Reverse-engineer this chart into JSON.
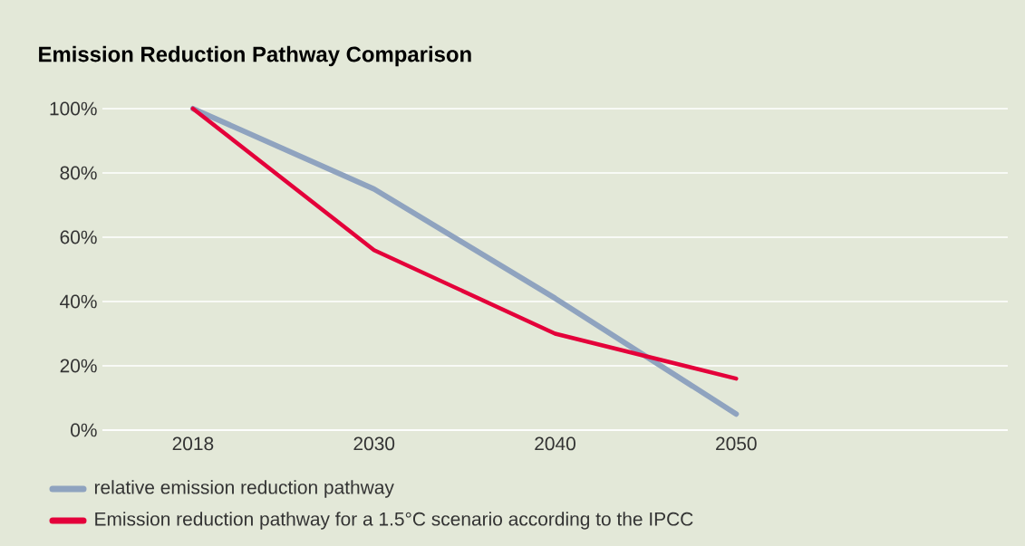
{
  "chart_data": {
    "type": "line",
    "title": "Emission Reduction Pathway Comparison",
    "categories": [
      "2018",
      "2030",
      "2040",
      "2050"
    ],
    "series": [
      {
        "name": "relative emission reduction pathway",
        "color": "#8fa3bf",
        "values": [
          100,
          75,
          41,
          5
        ]
      },
      {
        "name": "Emission reduction pathway for a 1.5°C scenario according to the IPCC",
        "color": "#e4003a",
        "values": [
          100,
          56,
          30,
          16
        ]
      }
    ],
    "ylim": [
      0,
      100
    ],
    "yticks": [
      {
        "value": 0,
        "label": "0%"
      },
      {
        "value": 20,
        "label": "20%"
      },
      {
        "value": 40,
        "label": "40%"
      },
      {
        "value": 60,
        "label": "60%"
      },
      {
        "value": 80,
        "label": "80%"
      },
      {
        "value": 100,
        "label": "100%"
      }
    ],
    "grid": "y",
    "legend": "bottom",
    "marker": "none",
    "line_style": "solid"
  }
}
